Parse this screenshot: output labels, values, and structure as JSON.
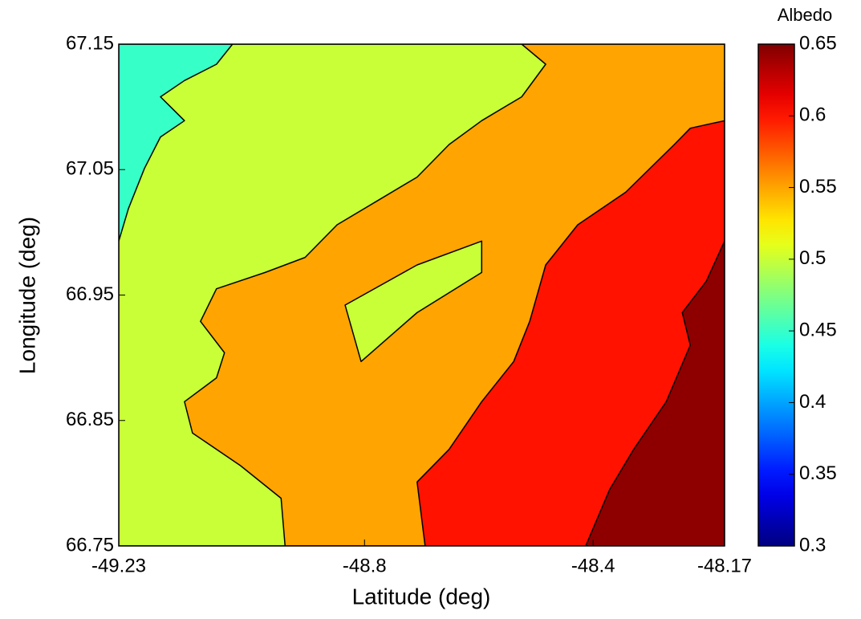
{
  "chart_data": {
    "type": "contourf",
    "xlabel": "Latitude (deg)",
    "ylabel": "Longitude (deg)",
    "colorbar_label": "Albedo",
    "colormap": "jet",
    "clim": [
      0.3,
      0.65
    ],
    "cticks": [
      0.3,
      0.35,
      0.4,
      0.45,
      0.5,
      0.55,
      0.6,
      0.65
    ],
    "xlim": [
      -49.23,
      -48.17
    ],
    "xticks": [
      -49.23,
      -48.8,
      -48.4,
      -48.17
    ],
    "ylim": [
      66.75,
      67.15
    ],
    "yticks": [
      66.75,
      66.85,
      66.95,
      67.05,
      67.15
    ],
    "regions": [
      {
        "level": 0.5,
        "points": [
          [
            -49.23,
            66.75
          ],
          [
            -49.23,
            67.15
          ],
          [
            -48.17,
            67.15
          ],
          [
            -48.17,
            66.75
          ]
        ]
      },
      {
        "level": 0.45,
        "points": [
          [
            -49.23,
            67.15
          ],
          [
            -49.031,
            67.15
          ],
          [
            -49.059,
            67.134
          ],
          [
            -49.115,
            67.121
          ],
          [
            -49.157,
            67.108
          ],
          [
            -49.115,
            67.089
          ],
          [
            -49.157,
            67.076
          ],
          [
            -49.185,
            67.051
          ],
          [
            -49.213,
            67.019
          ],
          [
            -49.23,
            66.993
          ]
        ]
      },
      {
        "level": 0.55,
        "points": [
          [
            -48.525,
            67.15
          ],
          [
            -48.17,
            67.15
          ],
          [
            -48.17,
            66.75
          ],
          [
            -48.939,
            66.75
          ],
          [
            -48.946,
            66.788
          ],
          [
            -49.017,
            66.814
          ],
          [
            -49.101,
            66.84
          ],
          [
            -49.115,
            66.865
          ],
          [
            -49.059,
            66.884
          ],
          [
            -49.045,
            66.904
          ],
          [
            -49.087,
            66.929
          ],
          [
            -49.059,
            66.955
          ],
          [
            -48.974,
            66.968
          ],
          [
            -48.904,
            66.98
          ],
          [
            -48.848,
            67.006
          ],
          [
            -48.778,
            67.025
          ],
          [
            -48.708,
            67.044
          ],
          [
            -48.652,
            67.07
          ],
          [
            -48.595,
            67.089
          ],
          [
            -48.525,
            67.108
          ],
          [
            -48.483,
            67.134
          ]
        ]
      },
      {
        "level": 0.5,
        "points": [
          [
            -48.834,
            66.942
          ],
          [
            -48.708,
            66.974
          ],
          [
            -48.595,
            66.993
          ],
          [
            -48.595,
            66.968
          ],
          [
            -48.708,
            66.936
          ],
          [
            -48.806,
            66.897
          ]
        ]
      },
      {
        "level": 0.6,
        "points": [
          [
            -48.17,
            67.121
          ],
          [
            -48.17,
            66.75
          ],
          [
            -48.694,
            66.75
          ],
          [
            -48.708,
            66.801
          ],
          [
            -48.652,
            66.827
          ],
          [
            -48.595,
            66.865
          ],
          [
            -48.539,
            66.897
          ],
          [
            -48.511,
            66.929
          ],
          [
            -48.483,
            66.974
          ],
          [
            -48.427,
            67.006
          ],
          [
            -48.343,
            67.032
          ],
          [
            -48.258,
            67.07
          ],
          [
            -48.23,
            67.083
          ],
          [
            -48.17,
            67.089
          ]
        ]
      },
      {
        "level": 0.645,
        "points": [
          [
            -48.17,
            66.993
          ],
          [
            -48.17,
            66.75
          ],
          [
            -48.413,
            66.75
          ],
          [
            -48.371,
            66.795
          ],
          [
            -48.329,
            66.827
          ],
          [
            -48.272,
            66.865
          ],
          [
            -48.23,
            66.91
          ],
          [
            -48.244,
            66.936
          ],
          [
            -48.202,
            66.961
          ]
        ]
      }
    ]
  }
}
